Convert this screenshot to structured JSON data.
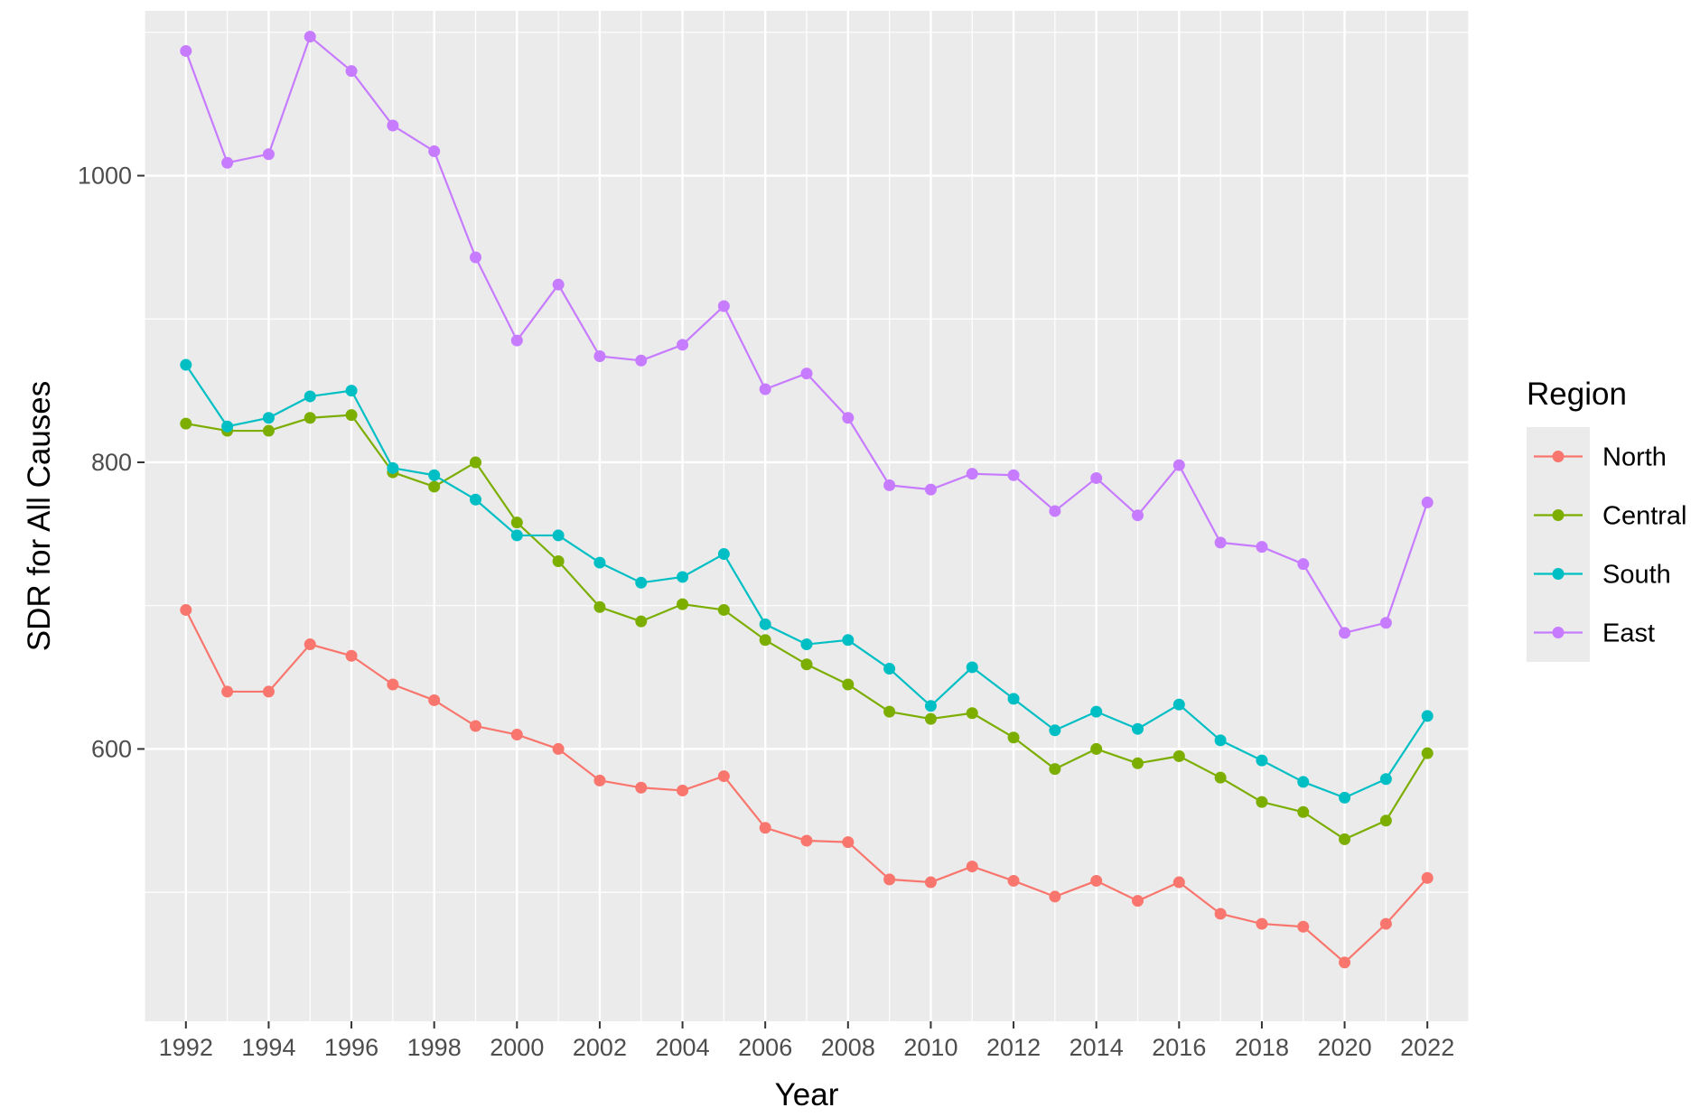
{
  "chart_data": {
    "type": "line",
    "xlabel": "Year",
    "ylabel": "SDR for All Causes",
    "xlim": [
      1991,
      2023
    ],
    "ylim": [
      410,
      1115
    ],
    "x_ticks": [
      1992,
      1994,
      1996,
      1998,
      2000,
      2002,
      2004,
      2006,
      2008,
      2010,
      2012,
      2014,
      2016,
      2018,
      2020,
      2022
    ],
    "x_tick_labels": [
      "1992",
      "1994",
      "1996",
      "1998",
      "2000",
      "2002",
      "2004",
      "2006",
      "2008",
      "2010",
      "2012",
      "2014",
      "2016",
      "2018",
      "2020",
      "2022"
    ],
    "y_ticks": [
      600,
      800,
      1000
    ],
    "y_tick_labels": [
      "600",
      "800",
      "1000"
    ],
    "grid": true,
    "panel_background": "#EBEBEB",
    "gridline_color": "#FFFFFF",
    "legend": {
      "title": "Region",
      "placement": "right"
    },
    "x": [
      1992,
      1993,
      1994,
      1995,
      1996,
      1997,
      1998,
      1999,
      2000,
      2001,
      2002,
      2003,
      2004,
      2005,
      2006,
      2007,
      2008,
      2009,
      2010,
      2011,
      2012,
      2013,
      2014,
      2015,
      2016,
      2017,
      2018,
      2019,
      2020,
      2021,
      2022
    ],
    "series": [
      {
        "name": "North",
        "color": "#F8766D",
        "values": [
          697,
          640,
          640,
          673,
          665,
          645,
          634,
          616,
          610,
          600,
          578,
          573,
          571,
          581,
          545,
          536,
          535,
          509,
          507,
          518,
          508,
          497,
          508,
          494,
          507,
          485,
          478,
          476,
          451,
          478,
          510
        ]
      },
      {
        "name": "Central",
        "color": "#7CAE00",
        "values": [
          827,
          822,
          822,
          831,
          833,
          793,
          783,
          800,
          758,
          731,
          699,
          689,
          701,
          697,
          676,
          659,
          645,
          626,
          621,
          625,
          608,
          586,
          600,
          590,
          595,
          580,
          563,
          556,
          537,
          550,
          597
        ]
      },
      {
        "name": "South",
        "color": "#00BFC4",
        "values": [
          868,
          825,
          831,
          846,
          850,
          796,
          791,
          774,
          749,
          749,
          730,
          716,
          720,
          736,
          687,
          673,
          676,
          656,
          630,
          657,
          635,
          613,
          626,
          614,
          631,
          606,
          592,
          577,
          566,
          579,
          623
        ]
      },
      {
        "name": "East",
        "color": "#C77CFF",
        "values": [
          1087,
          1009,
          1015,
          1097,
          1073,
          1035,
          1017,
          943,
          885,
          924,
          874,
          871,
          882,
          909,
          851,
          862,
          831,
          784,
          781,
          792,
          791,
          766,
          789,
          763,
          798,
          744,
          741,
          729,
          681,
          688,
          772
        ]
      }
    ]
  }
}
